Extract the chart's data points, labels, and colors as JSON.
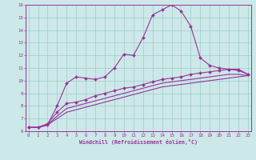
{
  "xlabel": "Windchill (Refroidissement éolien,°C)",
  "x_values": [
    0,
    1,
    2,
    3,
    4,
    5,
    6,
    7,
    8,
    9,
    10,
    11,
    12,
    13,
    14,
    15,
    16,
    17,
    18,
    19,
    20,
    21,
    22,
    23
  ],
  "line1": [
    6.3,
    6.3,
    6.5,
    8.0,
    9.8,
    10.3,
    10.2,
    10.1,
    10.3,
    11.0,
    12.1,
    12.0,
    13.4,
    15.2,
    15.6,
    16.0,
    15.5,
    14.3,
    11.8,
    11.2,
    11.0,
    10.9,
    10.8,
    10.5
  ],
  "line2": [
    6.3,
    6.3,
    6.6,
    7.5,
    8.2,
    8.3,
    8.5,
    8.8,
    9.0,
    9.2,
    9.4,
    9.5,
    9.7,
    9.9,
    10.1,
    10.2,
    10.3,
    10.5,
    10.6,
    10.7,
    10.8,
    10.9,
    10.9,
    10.5
  ],
  "line3": [
    6.3,
    6.3,
    6.5,
    7.2,
    7.8,
    8.0,
    8.2,
    8.4,
    8.6,
    8.8,
    9.0,
    9.2,
    9.4,
    9.6,
    9.8,
    9.9,
    10.0,
    10.1,
    10.2,
    10.3,
    10.4,
    10.5,
    10.5,
    10.4
  ],
  "line4": [
    6.3,
    6.3,
    6.5,
    7.0,
    7.5,
    7.7,
    7.9,
    8.1,
    8.3,
    8.5,
    8.7,
    8.9,
    9.1,
    9.3,
    9.5,
    9.6,
    9.7,
    9.8,
    9.9,
    10.0,
    10.1,
    10.2,
    10.3,
    10.4
  ],
  "line_color": "#993399",
  "bg_color": "#cce8e8",
  "grid_color": "#a0cccc",
  "ylim": [
    6,
    16
  ],
  "xlim": [
    -0.3,
    23.3
  ],
  "yticks": [
    6,
    7,
    8,
    9,
    10,
    11,
    12,
    13,
    14,
    15,
    16
  ],
  "xticks": [
    0,
    1,
    2,
    3,
    4,
    5,
    6,
    7,
    8,
    9,
    10,
    11,
    12,
    13,
    14,
    15,
    16,
    17,
    18,
    19,
    20,
    21,
    22,
    23
  ]
}
